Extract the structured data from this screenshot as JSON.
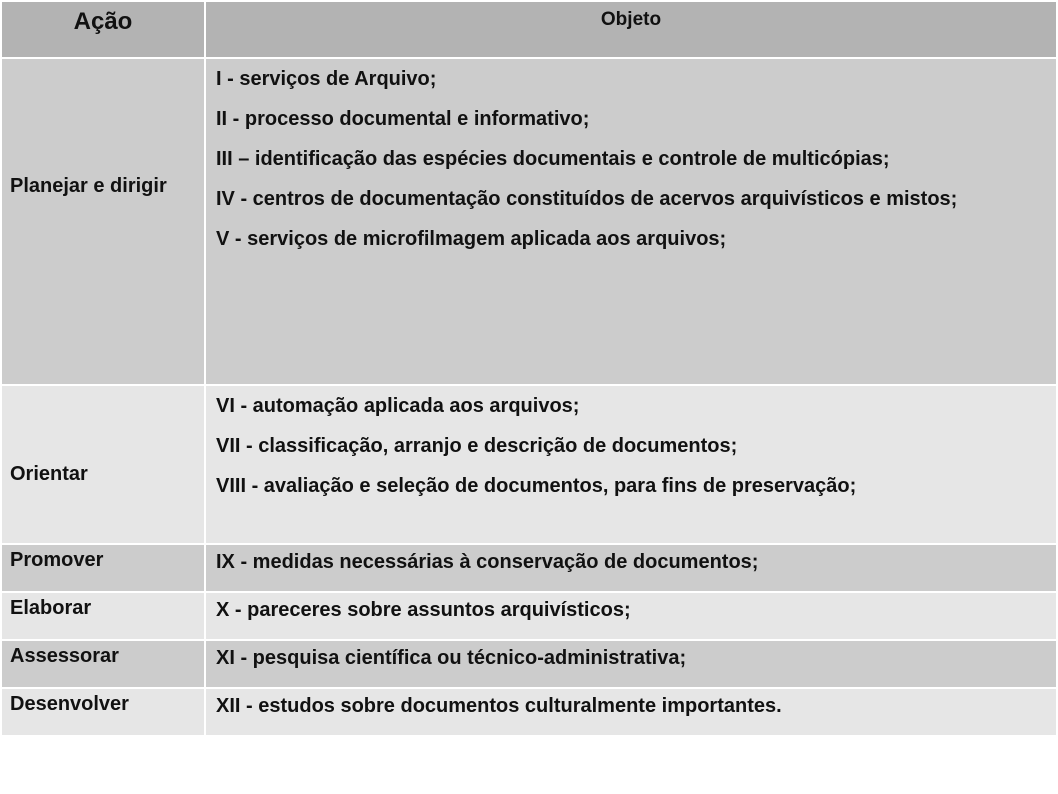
{
  "header": {
    "acao": "Ação",
    "objeto": "Objeto"
  },
  "rows": [
    {
      "acao": "Planejar e dirigir",
      "items": [
        "I - serviços de Arquivo;",
        "II - processo documental e informativo;",
        "III – identificação das espécies documentais e controle de multicópias;",
        "IV - centros de documentação constituídos de acervos arquivísticos e mistos;",
        "V - serviços de microfilmagem aplicada aos arquivos;"
      ]
    },
    {
      "acao": "Orientar",
      "items": [
        "VI - automação aplicada aos arquivos;",
        "VII - classificação, arranjo e descrição de documentos;",
        "VIII - avaliação e seleção de documentos, para fins de preservação;"
      ]
    },
    {
      "acao": "Promover",
      "items": [
        "IX - medidas necessárias à conservação de documentos;"
      ]
    },
    {
      "acao": "Elaborar",
      "items": [
        "X - pareceres sobre assuntos arquivísticos;"
      ]
    },
    {
      "acao": "Assessorar",
      "items": [
        "XI - pesquisa científica ou técnico-administrativa;"
      ]
    },
    {
      "acao": "Desenvolver",
      "items": [
        "XII - estudos sobre documentos culturalmente importantes."
      ]
    }
  ],
  "colors": {
    "header": "#b3b3b3",
    "row_dark": "#cccccc",
    "row_light": "#e6e6e6"
  }
}
